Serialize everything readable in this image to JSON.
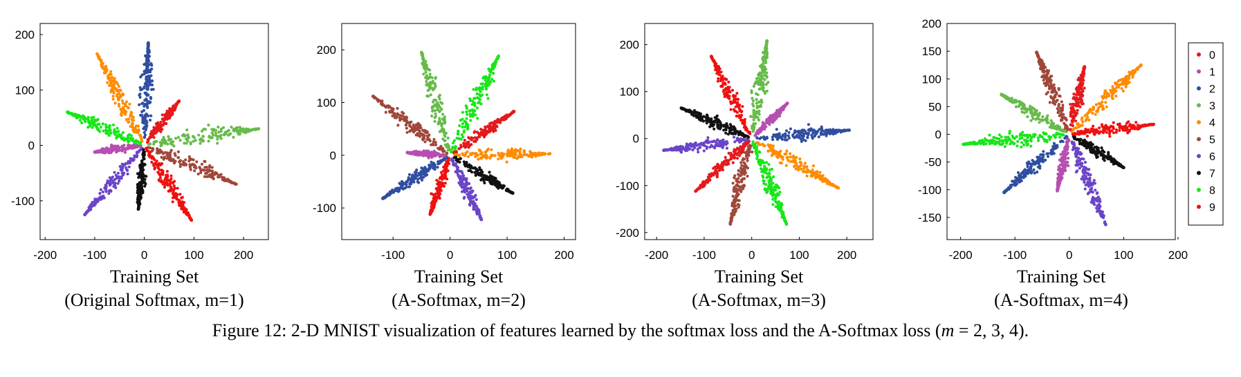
{
  "colors": {
    "0": "#e41a1c",
    "1": "#b64fb0",
    "2": "#2f4ea0",
    "3": "#66bb4a",
    "4": "#ff8c00",
    "5": "#a0473a",
    "6": "#6b45c8",
    "7": "#111111",
    "8": "#19e619",
    "9": "#f01010"
  },
  "legend": {
    "labels": [
      "0",
      "1",
      "2",
      "3",
      "4",
      "5",
      "6",
      "7",
      "8",
      "9"
    ]
  },
  "caption": {
    "prefix": "Figure 12: 2-D MNIST visualization of features learned by the softmax loss and the A-Softmax loss (",
    "m": "m",
    "suffix": " = 2, 3, 4)."
  },
  "chart_data": [
    {
      "type": "scatter",
      "title_line1": "Training Set",
      "title_line2": "(Original Softmax, m=1)",
      "xlim": [
        -210,
        250
      ],
      "ylim": [
        -170,
        220
      ],
      "xticks": [
        -200,
        -100,
        0,
        100,
        200
      ],
      "yticks": [
        -100,
        0,
        100,
        200
      ],
      "xtick_labels": [
        "-200",
        "-100",
        "0",
        "100",
        "200"
      ],
      "ytick_labels": [
        "-100",
        "0",
        "100",
        "200"
      ],
      "grid": false,
      "clusters": [
        {
          "label": "0",
          "tip": [
            70,
            80
          ]
        },
        {
          "label": "1",
          "tip": [
            -100,
            -12
          ]
        },
        {
          "label": "2",
          "tip": [
            8,
            185
          ]
        },
        {
          "label": "3",
          "tip": [
            230,
            30
          ]
        },
        {
          "label": "4",
          "tip": [
            -95,
            165
          ]
        },
        {
          "label": "5",
          "tip": [
            185,
            -70
          ]
        },
        {
          "label": "6",
          "tip": [
            -120,
            -125
          ]
        },
        {
          "label": "7",
          "tip": [
            -12,
            -115
          ]
        },
        {
          "label": "8",
          "tip": [
            -155,
            60
          ]
        },
        {
          "label": "9",
          "tip": [
            95,
            -135
          ]
        }
      ]
    },
    {
      "type": "scatter",
      "title_line1": "Training Set",
      "title_line2": "(A-Softmax, m=2)",
      "xlim": [
        -190,
        220
      ],
      "ylim": [
        -160,
        250
      ],
      "xticks": [
        -100,
        0,
        100,
        200
      ],
      "yticks": [
        -100,
        0,
        100,
        200
      ],
      "xtick_labels": [
        "-100",
        "0",
        "100",
        "200"
      ],
      "ytick_labels": [
        "-100",
        "0",
        "100",
        "200"
      ],
      "grid": false,
      "clusters": [
        {
          "label": "0",
          "tip": [
            112,
            83
          ]
        },
        {
          "label": "1",
          "tip": [
            -75,
            5
          ]
        },
        {
          "label": "2",
          "tip": [
            -118,
            -82
          ]
        },
        {
          "label": "3",
          "tip": [
            -50,
            195
          ]
        },
        {
          "label": "4",
          "tip": [
            175,
            3
          ]
        },
        {
          "label": "5",
          "tip": [
            -135,
            112
          ]
        },
        {
          "label": "6",
          "tip": [
            55,
            -122
          ]
        },
        {
          "label": "7",
          "tip": [
            110,
            -72
          ]
        },
        {
          "label": "8",
          "tip": [
            85,
            188
          ]
        },
        {
          "label": "9",
          "tip": [
            -35,
            -112
          ]
        }
      ]
    },
    {
      "type": "scatter",
      "title_line1": "Training Set",
      "title_line2": "(A-Softmax, m=3)",
      "xlim": [
        -225,
        255
      ],
      "ylim": [
        -215,
        245
      ],
      "xticks": [
        -200,
        -100,
        0,
        100,
        200
      ],
      "yticks": [
        -200,
        -100,
        0,
        100,
        200
      ],
      "xtick_labels": [
        "-200",
        "-100",
        "0",
        "100",
        "200"
      ],
      "ytick_labels": [
        "-200",
        "-100",
        "0",
        "100",
        "200"
      ],
      "grid": false,
      "clusters": [
        {
          "label": "0",
          "tip": [
            -118,
            -112
          ]
        },
        {
          "label": "1",
          "tip": [
            75,
            75
          ]
        },
        {
          "label": "2",
          "tip": [
            205,
            18
          ]
        },
        {
          "label": "3",
          "tip": [
            32,
            208
          ]
        },
        {
          "label": "4",
          "tip": [
            182,
            -105
          ]
        },
        {
          "label": "5",
          "tip": [
            -45,
            -182
          ]
        },
        {
          "label": "6",
          "tip": [
            -185,
            -25
          ]
        },
        {
          "label": "7",
          "tip": [
            -148,
            65
          ]
        },
        {
          "label": "8",
          "tip": [
            73,
            -182
          ]
        },
        {
          "label": "9",
          "tip": [
            -85,
            175
          ]
        }
      ]
    },
    {
      "type": "scatter",
      "title_line1": "Training Set",
      "title_line2": "(A-Softmax, m=4)",
      "xlim": [
        -225,
        195
      ],
      "ylim": [
        -190,
        200
      ],
      "xticks": [
        -200,
        -100,
        0,
        100,
        200
      ],
      "yticks": [
        -150,
        -100,
        -50,
        0,
        50,
        100,
        150,
        200
      ],
      "xtick_labels": [
        "-200",
        "-100",
        "0",
        "100",
        "200"
      ],
      "ytick_labels": [
        "-150",
        "-100",
        "-50",
        "0",
        "50",
        "100",
        "150",
        "200"
      ],
      "grid": false,
      "clusters": [
        {
          "label": "0",
          "tip": [
            28,
            122
          ]
        },
        {
          "label": "1",
          "tip": [
            -22,
            -102
          ]
        },
        {
          "label": "2",
          "tip": [
            -120,
            -105
          ]
        },
        {
          "label": "3",
          "tip": [
            -125,
            72
          ]
        },
        {
          "label": "4",
          "tip": [
            132,
            125
          ]
        },
        {
          "label": "5",
          "tip": [
            -60,
            148
          ]
        },
        {
          "label": "6",
          "tip": [
            67,
            -163
          ]
        },
        {
          "label": "7",
          "tip": [
            100,
            -60
          ]
        },
        {
          "label": "8",
          "tip": [
            -195,
            -18
          ]
        },
        {
          "label": "9",
          "tip": [
            155,
            18
          ]
        }
      ]
    }
  ]
}
